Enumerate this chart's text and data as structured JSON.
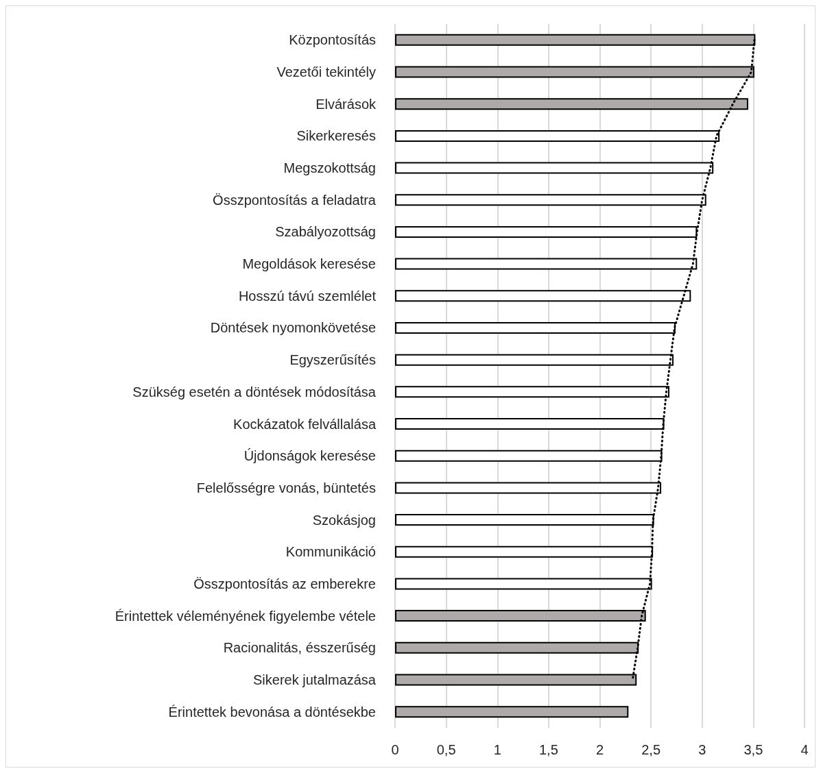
{
  "chart_data": {
    "type": "bar",
    "orientation": "horizontal",
    "categories": [
      "Központosítás",
      "Vezetői tekintély",
      "Elvárások",
      "Sikerkeresés",
      "Megszokottság",
      "Összpontosítás a feladatra",
      "Szabályozottság",
      "Megoldások keresése",
      "Hosszú távú szemlélet",
      "Döntések nyomonkövetése",
      "Egyszerűsítés",
      "Szükség esetén a döntések módosítása",
      "Kockázatok felvállalása",
      "Újdonságok keresése",
      "Felelősségre vonás, büntetés",
      "Szokásjog",
      "Kommunikáció",
      "Összpontosítás az emberekre",
      "Érintettek véleményének figyelembe vétele",
      "Racionalitás, ésszerűség",
      "Sikerek jutalmazása",
      "Érintettek bevonása a döntésekbe"
    ],
    "series": [
      {
        "values": [
          3.52,
          3.51,
          3.45,
          3.17,
          3.11,
          3.04,
          2.95,
          2.95,
          2.89,
          2.74,
          2.72,
          2.68,
          2.63,
          2.61,
          2.6,
          2.53,
          2.52,
          2.51,
          2.45,
          2.38,
          2.36,
          2.28
        ],
        "colors": [
          "#aeaaaa",
          "#aeaaaa",
          "#aeaaaa",
          "#ffffff",
          "#ffffff",
          "#ffffff",
          "#ffffff",
          "#ffffff",
          "#ffffff",
          "#ffffff",
          "#ffffff",
          "#ffffff",
          "#ffffff",
          "#ffffff",
          "#ffffff",
          "#ffffff",
          "#ffffff",
          "#ffffff",
          "#aeaaaa",
          "#aeaaaa",
          "#aeaaaa",
          "#aeaaaa"
        ]
      },
      {
        "type": "line",
        "color": "#000000",
        "line_style": "dotted",
        "marker": "none",
        "values": [
          3.51,
          3.48,
          3.3,
          3.14,
          3.08,
          3.0,
          2.95,
          2.91,
          2.82,
          2.73,
          2.69,
          2.65,
          2.62,
          2.6,
          2.57,
          2.52,
          2.51,
          2.49,
          2.41,
          2.37,
          2.32,
          null
        ]
      }
    ],
    "xlim": [
      0,
      4
    ],
    "xticks": [
      0,
      {
        "value": 0.5,
        "label": "0,5"
      },
      1,
      {
        "value": 1.5,
        "label": "1,5"
      },
      2,
      {
        "value": 2.5,
        "label": "2,5"
      },
      3,
      {
        "value": 3.5,
        "label": "3,5"
      },
      4
    ],
    "grid": "x"
  }
}
